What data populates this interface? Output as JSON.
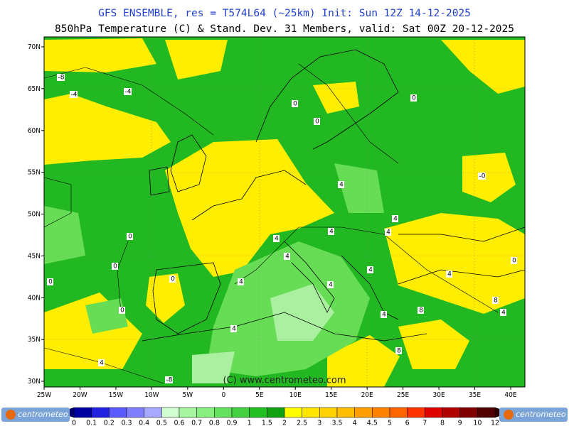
{
  "header": {
    "title": "GFS ENSEMBLE, res = T574L64 (~25km)    Init: Sun 12Z 14-12-2025",
    "subtitle": "850hPa Temperature (C) & Stand. Dev.    31 Members, valid: Sat 00Z 20-12-2025"
  },
  "map": {
    "lat_labels": [
      "70N",
      "65N",
      "60N",
      "55N",
      "50N",
      "45N",
      "40N",
      "35N",
      "30N"
    ],
    "lon_labels": [
      "25W",
      "20W",
      "15W",
      "10W",
      "5W",
      "0",
      "5E",
      "10E",
      "15E",
      "20E",
      "25E",
      "30E",
      "35E",
      "40E"
    ],
    "contour_labels": [
      "-8",
      "-4",
      "-4",
      "0",
      "0",
      "0",
      "-0",
      "0",
      "0",
      "0",
      "0",
      "0",
      "4",
      "4",
      "4",
      "4",
      "4",
      "4",
      "4",
      "4",
      "4",
      "4",
      "4",
      "8",
      "8",
      "4",
      "-8",
      "8",
      "4",
      "4",
      "0"
    ],
    "copyright": "(C) www.centrometeo.com"
  },
  "colorbar": {
    "labels": [
      "0",
      "0.1",
      "0.2",
      "0.3",
      "0.4",
      "0.5",
      "0.6",
      "0.7",
      "0.8",
      "0.9",
      "1",
      "1.5",
      "2",
      "2.5",
      "3",
      "3.5",
      "4",
      "4.5",
      "5",
      "6",
      "7",
      "8",
      "9",
      "10",
      "12"
    ],
    "colors": [
      "#0000a0",
      "#2020e0",
      "#5a5aff",
      "#8080ff",
      "#a8a8ff",
      "#d2ffd2",
      "#a8f5a0",
      "#88ee80",
      "#66e060",
      "#44d040",
      "#22c022",
      "#10a010",
      "#ffff00",
      "#ffe600",
      "#ffd200",
      "#ffbe00",
      "#ffa000",
      "#ff8200",
      "#ff6400",
      "#ff3200",
      "#e00000",
      "#b00000",
      "#800000",
      "#500000"
    ],
    "low_color": "#000070",
    "high_color": "#300000"
  },
  "logos": [
    "centrometeo",
    "centrometeo"
  ]
}
